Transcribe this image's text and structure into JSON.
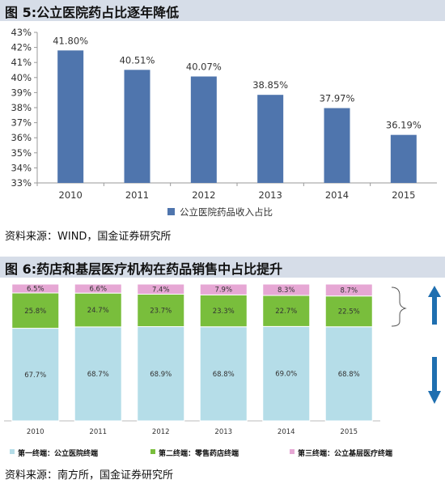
{
  "figure1": {
    "title": "图 5:公立医院药占比逐年降低",
    "source": "资料来源：WIND，国金证券研究所"
  },
  "figure2": {
    "title": "图 6:药店和基层医疗机构在药品销售中占比提升",
    "source": "资料来源：南方所，国金证券研究所"
  },
  "chart_data": [
    {
      "type": "bar",
      "categories": [
        "2010",
        "2011",
        "2012",
        "2013",
        "2014",
        "2015"
      ],
      "series": [
        {
          "name": "公立医院药品收入占比",
          "values": [
            41.8,
            40.51,
            40.07,
            38.85,
            37.97,
            36.19
          ],
          "color": "#4f75ad"
        }
      ],
      "data_labels": [
        "41.80%",
        "40.51%",
        "40.07%",
        "38.85%",
        "37.97%",
        "36.19%"
      ],
      "ylim": [
        33,
        43
      ],
      "yticks": [
        "33%",
        "34%",
        "35%",
        "36%",
        "37%",
        "38%",
        "39%",
        "40%",
        "41%",
        "42%",
        "43%"
      ],
      "grid": false,
      "legend": "bottom"
    },
    {
      "type": "bar",
      "stacked": true,
      "categories": [
        "2010",
        "2011",
        "2012",
        "2013",
        "2014",
        "2015"
      ],
      "series": [
        {
          "name": "第一终端：公立医院终端",
          "values": [
            67.7,
            68.7,
            68.9,
            68.8,
            69.0,
            68.8
          ],
          "color": "#b5dde8",
          "labels": [
            "67.7%",
            "68.7%",
            "68.9%",
            "68.8%",
            "69.0%",
            "68.8%"
          ]
        },
        {
          "name": "第二终端：零售药店终端",
          "values": [
            25.8,
            24.7,
            23.7,
            23.3,
            22.7,
            22.5
          ],
          "color": "#79be3c",
          "labels": [
            "25.8%",
            "24.7%",
            "23.7%",
            "23.3%",
            "22.7%",
            "22.5%"
          ]
        },
        {
          "name": "第三终端：公立基层医疗终端",
          "values": [
            6.5,
            6.6,
            7.4,
            7.9,
            8.3,
            8.7
          ],
          "color": "#e6a7d4",
          "labels": [
            "6.5%",
            "6.6%",
            "7.4%",
            "7.9%",
            "8.3%",
            "8.7%"
          ]
        }
      ],
      "ylim": [
        0,
        100
      ],
      "grid": false,
      "legend": "bottom",
      "arrows": {
        "upper": "up",
        "lower": "down",
        "color": "#1f6fb0"
      }
    }
  ]
}
